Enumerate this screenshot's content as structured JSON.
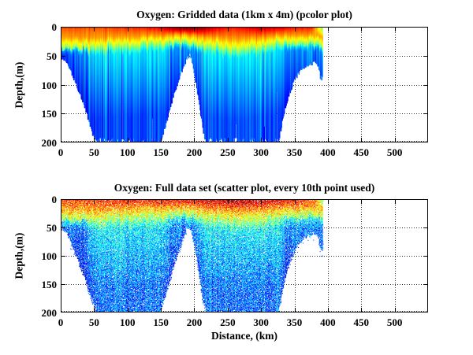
{
  "figure": {
    "background": "#ffffff",
    "axis_color": "#000000",
    "grid_color": "#333333"
  },
  "chart_data": [
    {
      "type": "heatmap",
      "plot_style": "pcolor",
      "title": "Oxygen: Gridded data (1km x 4m) (pcolor plot)",
      "xlabel": "",
      "ylabel": "Depth,(m)",
      "xlim": [
        0,
        550
      ],
      "ylim": [
        200,
        0
      ],
      "xticks": [
        0,
        50,
        100,
        150,
        200,
        250,
        300,
        350,
        400,
        450,
        500
      ],
      "yticks": [
        0,
        50,
        100,
        150,
        200
      ],
      "grid": "dotted",
      "legend": "none",
      "colormap": "jet",
      "x_data_extent_km": [
        0,
        392
      ],
      "bathymetry_km_depth": [
        [
          0,
          50
        ],
        [
          8,
          58
        ],
        [
          18,
          85
        ],
        [
          28,
          115
        ],
        [
          38,
          148
        ],
        [
          46,
          180
        ],
        [
          54,
          200
        ],
        [
          148,
          200
        ],
        [
          156,
          172
        ],
        [
          166,
          128
        ],
        [
          175,
          95
        ],
        [
          183,
          68
        ],
        [
          190,
          48
        ],
        [
          194,
          50
        ],
        [
          199,
          78
        ],
        [
          204,
          112
        ],
        [
          209,
          152
        ],
        [
          214,
          186
        ],
        [
          218,
          200
        ],
        [
          325,
          200
        ],
        [
          332,
          158
        ],
        [
          340,
          120
        ],
        [
          350,
          88
        ],
        [
          360,
          72
        ],
        [
          370,
          64
        ],
        [
          380,
          60
        ],
        [
          385,
          64
        ],
        [
          388,
          86
        ],
        [
          392,
          88
        ]
      ],
      "oxycline_depth_km_m": [
        [
          0,
          30
        ],
        [
          40,
          34
        ],
        [
          90,
          30
        ],
        [
          140,
          27
        ],
        [
          170,
          22
        ],
        [
          195,
          24
        ],
        [
          230,
          33
        ],
        [
          270,
          37
        ],
        [
          310,
          30
        ],
        [
          345,
          24
        ],
        [
          370,
          26
        ],
        [
          392,
          28
        ]
      ],
      "surface_value_km": [
        [
          0,
          0.79
        ],
        [
          40,
          0.77
        ],
        [
          80,
          0.8
        ],
        [
          120,
          0.82
        ],
        [
          150,
          0.85
        ],
        [
          165,
          0.92
        ],
        [
          185,
          0.96
        ],
        [
          210,
          0.95
        ],
        [
          228,
          0.88
        ],
        [
          255,
          0.83
        ],
        [
          280,
          0.86
        ],
        [
          300,
          0.9
        ],
        [
          322,
          0.88
        ],
        [
          345,
          0.83
        ],
        [
          368,
          0.82
        ],
        [
          378,
          0.78
        ],
        [
          386,
          0.62
        ],
        [
          392,
          0.5
        ]
      ],
      "deep_value": 0.2,
      "oxycline_sharpness_m": 14,
      "gap_lines_km_topdepth": [
        [
          92,
          46
        ],
        [
          137,
          158
        ],
        [
          223,
          46
        ],
        [
          262,
          168
        ],
        [
          305,
          172
        ],
        [
          323,
          112
        ]
      ]
    },
    {
      "type": "scatter",
      "plot_style": "scatter",
      "title": "Oxygen: Full data set (scatter plot, every 10th point used)",
      "xlabel": "Distance, (km)",
      "ylabel": "Depth,(m)",
      "xlim": [
        0,
        550
      ],
      "ylim": [
        200,
        0
      ],
      "xticks": [
        0,
        50,
        100,
        150,
        200,
        250,
        300,
        350,
        400,
        450,
        500
      ],
      "yticks": [
        0,
        50,
        100,
        150,
        200
      ],
      "grid": "dotted",
      "legend": "none",
      "colormap": "jet",
      "x_data_extent_km": [
        0,
        392
      ],
      "marker_px": 1,
      "point_fill_fraction": 0.85,
      "bathymetry_km_depth": [
        [
          0,
          50
        ],
        [
          8,
          58
        ],
        [
          18,
          85
        ],
        [
          28,
          115
        ],
        [
          38,
          148
        ],
        [
          46,
          180
        ],
        [
          54,
          200
        ],
        [
          148,
          200
        ],
        [
          156,
          172
        ],
        [
          166,
          128
        ],
        [
          175,
          95
        ],
        [
          183,
          68
        ],
        [
          190,
          48
        ],
        [
          194,
          50
        ],
        [
          199,
          78
        ],
        [
          204,
          112
        ],
        [
          209,
          152
        ],
        [
          214,
          186
        ],
        [
          218,
          200
        ],
        [
          325,
          200
        ],
        [
          332,
          158
        ],
        [
          340,
          120
        ],
        [
          350,
          88
        ],
        [
          360,
          72
        ],
        [
          370,
          64
        ],
        [
          380,
          60
        ],
        [
          385,
          64
        ],
        [
          388,
          86
        ],
        [
          392,
          88
        ]
      ],
      "oxycline_depth_km_m": [
        [
          0,
          30
        ],
        [
          40,
          34
        ],
        [
          90,
          31
        ],
        [
          140,
          28
        ],
        [
          170,
          24
        ],
        [
          195,
          25
        ],
        [
          230,
          34
        ],
        [
          270,
          38
        ],
        [
          310,
          32
        ],
        [
          345,
          26
        ],
        [
          370,
          27
        ],
        [
          392,
          28
        ]
      ],
      "surface_value_km": [
        [
          0,
          0.8
        ],
        [
          50,
          0.82
        ],
        [
          100,
          0.84
        ],
        [
          150,
          0.86
        ],
        [
          190,
          0.88
        ],
        [
          225,
          0.93
        ],
        [
          260,
          0.96
        ],
        [
          295,
          0.94
        ],
        [
          320,
          0.91
        ],
        [
          340,
          0.87
        ],
        [
          360,
          0.84
        ],
        [
          380,
          0.78
        ],
        [
          388,
          0.6
        ],
        [
          392,
          0.48
        ]
      ],
      "deep_value": 0.22,
      "oxycline_sharpness_m": 20,
      "gap_lines_km_topdepth": []
    }
  ]
}
